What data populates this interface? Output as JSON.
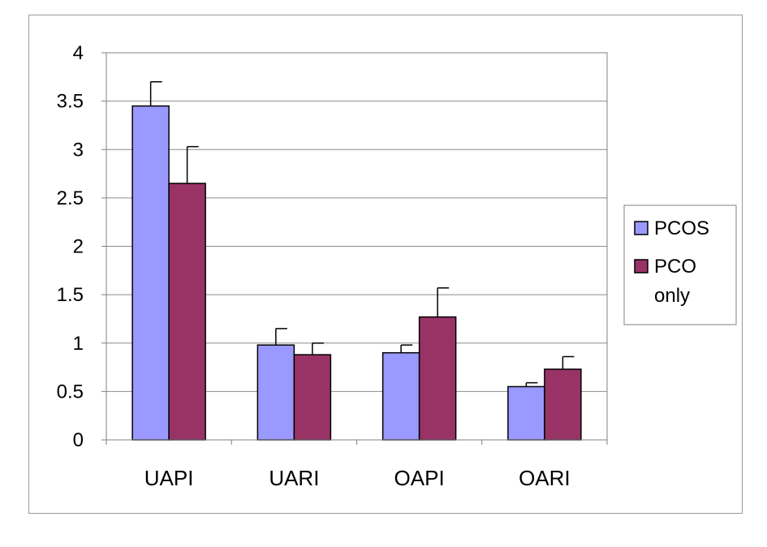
{
  "chart_data": {
    "type": "bar",
    "categories": [
      "UAPI",
      "UARI",
      "OAPI",
      "OARI"
    ],
    "series": [
      {
        "name": "PCOS",
        "color": "#9999ff",
        "values": [
          3.45,
          0.98,
          0.9,
          0.55
        ],
        "errors": [
          0.25,
          0.17,
          0.08,
          0.04
        ]
      },
      {
        "name": "PCO only",
        "color": "#993366",
        "values": [
          2.65,
          0.88,
          1.27,
          0.73
        ],
        "errors": [
          0.38,
          0.12,
          0.3,
          0.13
        ]
      }
    ],
    "legend_lines": [
      [
        "PCOS"
      ],
      [
        "PCO",
        "only"
      ]
    ],
    "ylim": [
      0,
      4
    ],
    "yticks": [
      "0",
      "0.5",
      "1",
      "1.5",
      "2",
      "2.5",
      "3",
      "3.5",
      "4"
    ],
    "title": "",
    "xlabel": "",
    "ylabel": "",
    "grid": true,
    "legend_position": "right"
  }
}
